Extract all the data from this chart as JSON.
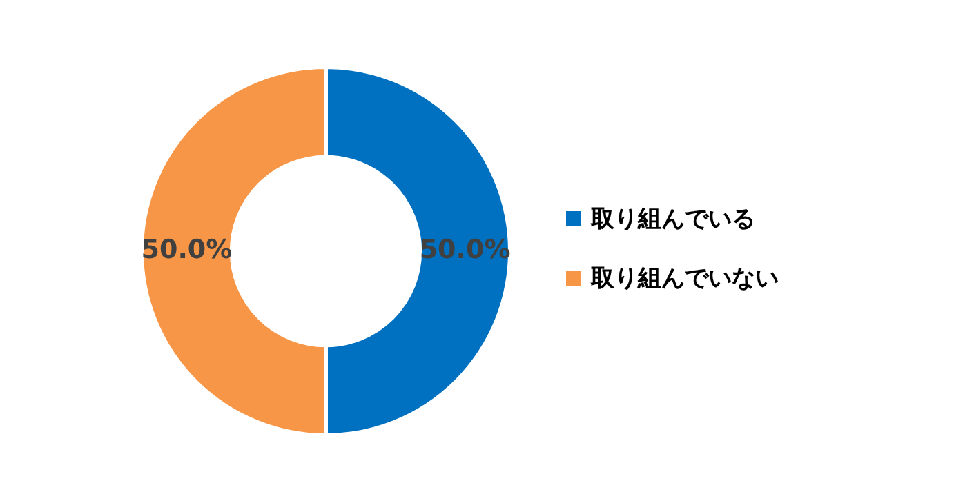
{
  "chart_data": {
    "type": "donut",
    "categories": [
      "取り組んでいる",
      "取り組んでいない"
    ],
    "values": [
      50,
      50
    ],
    "colors": [
      "#0070c0",
      "#f79646"
    ],
    "value_labels": [
      "50.0%",
      "50.0%"
    ],
    "legend": "right"
  }
}
